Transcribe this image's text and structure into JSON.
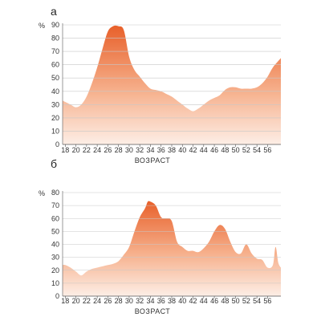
{
  "panels": [
    {
      "letter": "а"
    },
    {
      "letter": "б"
    }
  ],
  "colors": {
    "fill_top": "#e8602a",
    "fill_bottom": "#fdeee6",
    "grid": "#c8c8c8",
    "axis": "#555555"
  },
  "chart_data": [
    {
      "type": "area",
      "title": "",
      "xlabel": "ВОЗРАСТ",
      "ylabel": "%",
      "xlim": [
        17.5,
        58.5
      ],
      "ylim": [
        0,
        90
      ],
      "xticks": [
        18,
        20,
        22,
        24,
        26,
        28,
        30,
        32,
        34,
        36,
        38,
        40,
        42,
        44,
        46,
        48,
        50,
        52,
        54,
        56
      ],
      "yticks": [
        0,
        10,
        20,
        30,
        40,
        50,
        60,
        70,
        80,
        90
      ],
      "grid": true,
      "series": [
        {
          "x": [
            17.5,
            18,
            19,
            20,
            21,
            22,
            23,
            24,
            25,
            26,
            27,
            28,
            29,
            30,
            31,
            32,
            33,
            34,
            35,
            36,
            37,
            38,
            39,
            40,
            41,
            42,
            43,
            44,
            45,
            46,
            47,
            48,
            49,
            50,
            51,
            52,
            53,
            54,
            55,
            56,
            57,
            58.5
          ],
          "y": [
            33,
            32,
            30,
            28,
            30,
            36,
            46,
            58,
            72,
            85,
            89,
            89,
            86,
            66,
            56,
            51,
            46,
            42,
            41,
            40,
            38,
            36,
            33,
            30,
            27,
            25,
            27,
            30,
            33,
            35,
            37,
            41,
            43,
            43,
            42,
            42,
            42,
            43,
            46,
            51,
            58,
            65
          ]
        }
      ]
    },
    {
      "type": "area",
      "title": "",
      "xlabel": "ВОЗРАСТ",
      "ylabel": "%",
      "xlim": [
        17.5,
        58.5
      ],
      "ylim": [
        0,
        80
      ],
      "xticks": [
        18,
        20,
        22,
        24,
        26,
        28,
        30,
        32,
        34,
        36,
        38,
        40,
        42,
        44,
        46,
        48,
        50,
        52,
        54,
        56
      ],
      "yticks": [
        0,
        10,
        20,
        30,
        40,
        50,
        60,
        70,
        80
      ],
      "grid": true,
      "series": [
        {
          "x": [
            17.5,
            18,
            19,
            20,
            21,
            22,
            23,
            24,
            25,
            26,
            27,
            28,
            29,
            30,
            31,
            32,
            33,
            33.5,
            34,
            35,
            36,
            37,
            38,
            39,
            40,
            41,
            42,
            43,
            44,
            45,
            46,
            47,
            48,
            49,
            50,
            51,
            52,
            53,
            54,
            55,
            56,
            57,
            57.5,
            58,
            58.5
          ],
          "y": [
            24,
            24,
            22,
            19,
            16,
            19,
            21,
            22,
            23,
            24,
            25,
            27,
            32,
            38,
            50,
            61,
            68,
            73,
            73,
            70,
            61,
            60,
            58,
            42,
            38,
            35,
            35,
            34,
            37,
            42,
            50,
            55,
            52,
            42,
            34,
            33,
            40,
            33,
            29,
            28,
            22,
            24,
            38,
            26,
            22
          ]
        }
      ]
    }
  ]
}
